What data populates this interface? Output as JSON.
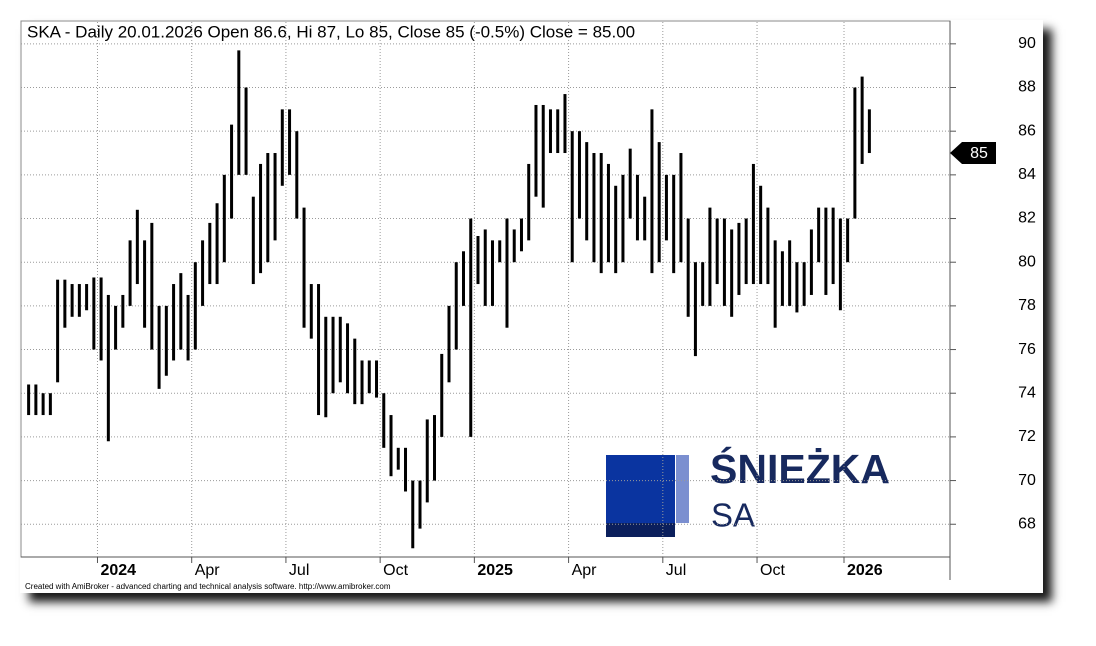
{
  "chart_data": {
    "type": "hilo",
    "title": "SKA - Daily 20.01.2026 Open 86.6, Hi 87, Lo 85, Close 85 (-0.5%) Close = 85.00",
    "categories": [
      null,
      null,
      null,
      null,
      null,
      null,
      null,
      null,
      null,
      null,
      "2024",
      null,
      null,
      null,
      null,
      null,
      null,
      null,
      null,
      null,
      null,
      null,
      null,
      "Apr",
      null,
      null,
      null,
      null,
      null,
      null,
      null,
      null,
      null,
      null,
      null,
      null,
      "Jul",
      null,
      null,
      null,
      null,
      null,
      null,
      null,
      null,
      null,
      null,
      null,
      null,
      "Oct",
      null,
      null,
      null,
      null,
      null,
      null,
      null,
      null,
      null,
      null,
      null,
      null,
      "2025",
      null,
      null,
      null,
      null,
      null,
      null,
      null,
      null,
      null,
      null,
      null,
      null,
      "Apr",
      null,
      null,
      null,
      null,
      null,
      null,
      null,
      null,
      null,
      null,
      null,
      null,
      "Jul",
      null,
      null,
      null,
      null,
      null,
      null,
      null,
      null,
      null,
      null,
      null,
      null,
      "Oct",
      null,
      null,
      null,
      null,
      null,
      null,
      null,
      null,
      null,
      null,
      null,
      "2026",
      null,
      null,
      null
    ],
    "high": [
      74.4,
      74.4,
      74,
      74,
      79.2,
      79.2,
      79,
      79,
      79,
      79.3,
      79.3,
      78.5,
      78,
      78.5,
      81,
      82.4,
      81,
      81.8,
      78,
      78,
      79,
      79.5,
      78.5,
      80,
      81,
      81.8,
      82.7,
      84,
      86.3,
      89.7,
      88,
      83,
      84.5,
      85,
      85,
      87,
      87,
      86,
      82.5,
      79,
      79,
      77.5,
      77.5,
      77.5,
      77.2,
      76.5,
      75.5,
      75.5,
      75.5,
      74,
      73,
      71.5,
      71.5,
      70,
      70,
      72.8,
      73,
      75.8,
      78,
      80,
      80.5,
      82,
      81.2,
      81.5,
      81,
      81,
      82,
      81.5,
      82,
      84.5,
      87.2,
      87.2,
      87,
      87,
      87.7,
      86,
      86,
      85.5,
      85,
      85,
      84.5,
      83.5,
      84,
      85.2,
      84,
      83,
      87,
      85.5,
      84,
      84,
      85,
      82,
      80,
      80,
      82.5,
      82,
      82,
      81.5,
      81.8,
      82,
      84.5,
      83.5,
      82.5,
      81,
      80.5,
      81,
      80,
      80,
      81.5,
      82.5,
      82.5,
      82.5,
      82,
      82,
      88,
      88.5,
      87
    ],
    "low": [
      73,
      73,
      73,
      73,
      74.5,
      77,
      77.5,
      77.5,
      77.8,
      76,
      75.5,
      71.8,
      76,
      77,
      78,
      79,
      77,
      76,
      74.2,
      74.8,
      75.5,
      76,
      75.5,
      76,
      78,
      79,
      79,
      80,
      82,
      84,
      84,
      79,
      79.5,
      80,
      81,
      83.5,
      84,
      82,
      77,
      76.5,
      73,
      72.9,
      74,
      74.5,
      74,
      73.5,
      73.5,
      74,
      73.8,
      71.5,
      70.2,
      70.5,
      69.5,
      66.9,
      67.8,
      69,
      70,
      72,
      74.5,
      76,
      78,
      72,
      79,
      78,
      78,
      80,
      77,
      80,
      80.5,
      81,
      83,
      82.5,
      85,
      85,
      85,
      80,
      82,
      81,
      80,
      79.5,
      80,
      79.5,
      80,
      82,
      81,
      81,
      79.5,
      80,
      81,
      79.5,
      80,
      77.5,
      75.7,
      78,
      78,
      79,
      78,
      77.5,
      78.5,
      79,
      79,
      79,
      79,
      77,
      78,
      78,
      77.7,
      78,
      78.5,
      80,
      78.5,
      79,
      77.8,
      80,
      82,
      84.5,
      85
    ],
    "color": "#000000",
    "ylim": [
      66.5,
      91
    ],
    "yticks": [
      68,
      70,
      72,
      74,
      76,
      78,
      80,
      82,
      84,
      86,
      88,
      90
    ],
    "grid": true,
    "last_value": 85
  },
  "watermark": {
    "name": "ŚNIEŻKA",
    "suffix": "SA"
  },
  "footer": "Created with AmiBroker - advanced charting and technical analysis software. http://www.amibroker.com"
}
